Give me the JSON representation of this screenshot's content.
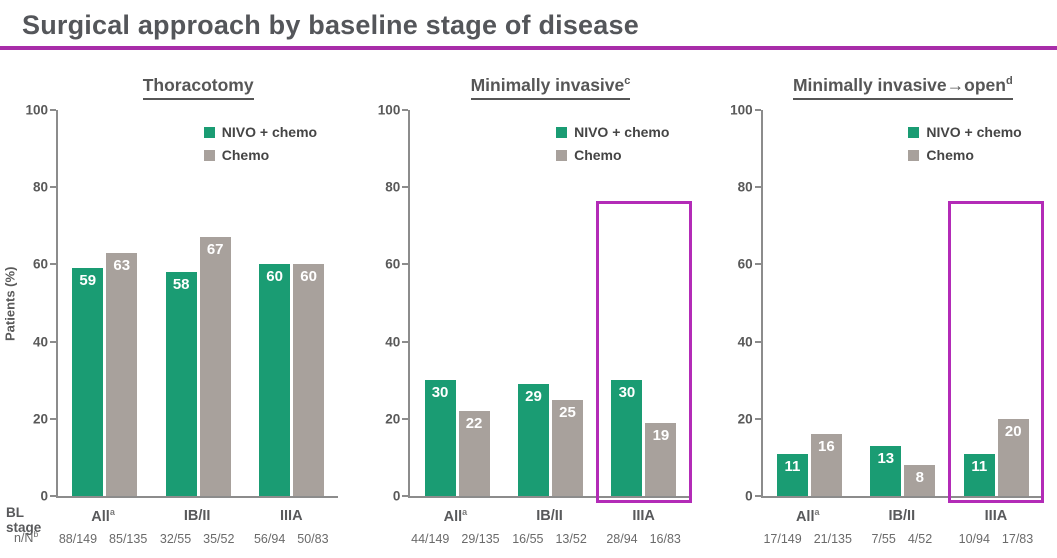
{
  "header": {
    "title": "Surgical approach by baseline stage of disease"
  },
  "colors": {
    "bar_nivo_chemo": "#1a9c73",
    "bar_chemo": "#a8a19c",
    "highlight_box": "#b32bb7",
    "title_rule": "#a82da9",
    "axis": "#8c8c8c",
    "text_dark": "#58595b"
  },
  "legend": [
    {
      "label": "NIVO + chemo",
      "color": "#1a9c73"
    },
    {
      "label": "Chemo",
      "color": "#a8a19c"
    }
  ],
  "row_labels": {
    "bl_stage": "BL stage",
    "n_N": "n/N",
    "n_N_superscript": "b"
  },
  "chart_data": [
    {
      "type": "bar",
      "title": "Thoracotomy",
      "title_superscript": "",
      "ylabel": "Patients (%)",
      "ylim": [
        0,
        100
      ],
      "yticks": [
        0,
        20,
        40,
        60,
        80,
        100
      ],
      "grid": false,
      "legend_position": "top-right",
      "categories": [
        "All",
        "IB/II",
        "IIIA"
      ],
      "category_superscripts": [
        "a",
        "",
        ""
      ],
      "series": [
        {
          "name": "NIVO + chemo",
          "color": "#1a9c73",
          "values": [
            59,
            58,
            60
          ]
        },
        {
          "name": "Chemo",
          "color": "#a8a19c",
          "values": [
            63,
            67,
            60
          ]
        }
      ],
      "n_over_N": [
        [
          "88/149",
          "85/135"
        ],
        [
          "32/55",
          "35/52"
        ],
        [
          "56/94",
          "50/83"
        ]
      ],
      "highlight_group_index": null,
      "highlight_top_value": null
    },
    {
      "type": "bar",
      "title": "Minimally invasive",
      "title_superscript": "c",
      "ylabel": "",
      "ylim": [
        0,
        100
      ],
      "yticks": [
        0,
        20,
        40,
        60,
        80,
        100
      ],
      "grid": false,
      "legend_position": "top-right",
      "categories": [
        "All",
        "IB/II",
        "IIIA"
      ],
      "category_superscripts": [
        "a",
        "",
        ""
      ],
      "series": [
        {
          "name": "NIVO + chemo",
          "color": "#1a9c73",
          "values": [
            30,
            29,
            30
          ]
        },
        {
          "name": "Chemo",
          "color": "#a8a19c",
          "values": [
            22,
            25,
            19
          ]
        }
      ],
      "n_over_N": [
        [
          "44/149",
          "29/135"
        ],
        [
          "16/55",
          "13/52"
        ],
        [
          "28/94",
          "16/83"
        ]
      ],
      "highlight_group_index": 2,
      "highlight_top_value": 76.5
    },
    {
      "type": "bar",
      "title": "Minimally invasive→open",
      "title_superscript": "d",
      "ylabel": "",
      "ylim": [
        0,
        100
      ],
      "yticks": [
        0,
        20,
        40,
        60,
        80,
        100
      ],
      "grid": false,
      "legend_position": "top-right",
      "categories": [
        "All",
        "IB/II",
        "IIIA"
      ],
      "category_superscripts": [
        "a",
        "",
        ""
      ],
      "series": [
        {
          "name": "NIVO + chemo",
          "color": "#1a9c73",
          "values": [
            11,
            13,
            11
          ]
        },
        {
          "name": "Chemo",
          "color": "#a8a19c",
          "values": [
            16,
            8,
            20
          ]
        }
      ],
      "n_over_N": [
        [
          "17/149",
          "21/135"
        ],
        [
          "7/55",
          "4/52"
        ],
        [
          "10/94",
          "17/83"
        ]
      ],
      "highlight_group_index": 2,
      "highlight_top_value": 76.5
    }
  ]
}
